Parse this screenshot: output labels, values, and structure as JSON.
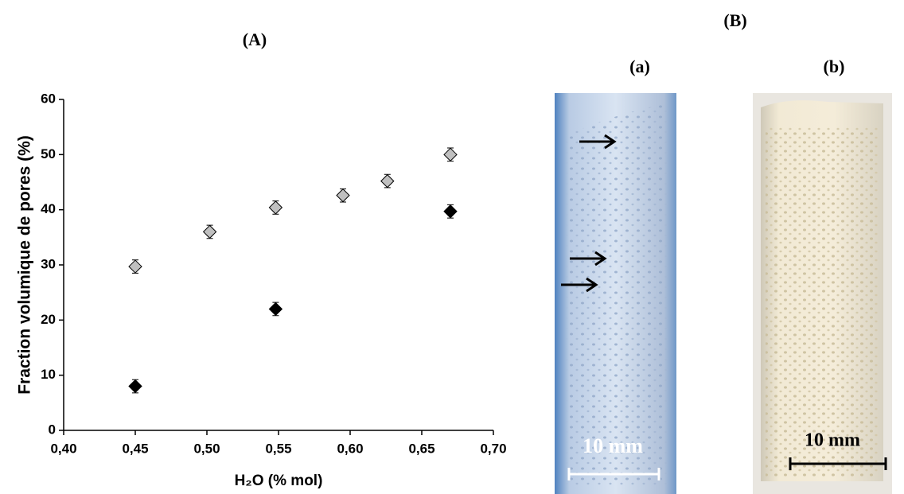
{
  "chart_data": {
    "type": "scatter",
    "title": "(A)",
    "x_label": "H₂O (% mol)",
    "y_label": "Fraction volumique de pores (%)",
    "xlim": [
      0.4,
      0.7
    ],
    "xticks": [
      {
        "value": 0.4,
        "label": "0,40"
      },
      {
        "value": 0.45,
        "label": "0,45"
      },
      {
        "value": 0.5,
        "label": "0,50"
      },
      {
        "value": 0.55,
        "label": "0,55"
      },
      {
        "value": 0.6,
        "label": "0,60"
      },
      {
        "value": 0.65,
        "label": "0,65"
      },
      {
        "value": 0.7,
        "label": "0,70"
      }
    ],
    "ylim": [
      0,
      60
    ],
    "yticks": [
      0,
      10,
      20,
      30,
      40,
      50,
      60
    ],
    "grid": false,
    "series": [
      {
        "color": "#c0c0c0",
        "x": [
          0.45,
          0.502,
          0.548,
          0.595,
          0.626,
          0.67
        ],
        "values": [
          29.7,
          36,
          40.4,
          42.6,
          45.2,
          50
        ],
        "errors": [
          1.2,
          1.2,
          1.2,
          1.2,
          1.2,
          1.2
        ]
      },
      {
        "color": "#000000",
        "x": [
          0.45,
          0.548,
          0.67
        ],
        "values": [
          8,
          22,
          39.7
        ],
        "errors": [
          1.2,
          1.2,
          1.2
        ]
      }
    ]
  },
  "figure": {
    "label": "(B)",
    "photos": [
      {
        "label": "(a)",
        "scale": "10 mm"
      },
      {
        "label": "(b)",
        "scale": "10 mm"
      }
    ]
  }
}
